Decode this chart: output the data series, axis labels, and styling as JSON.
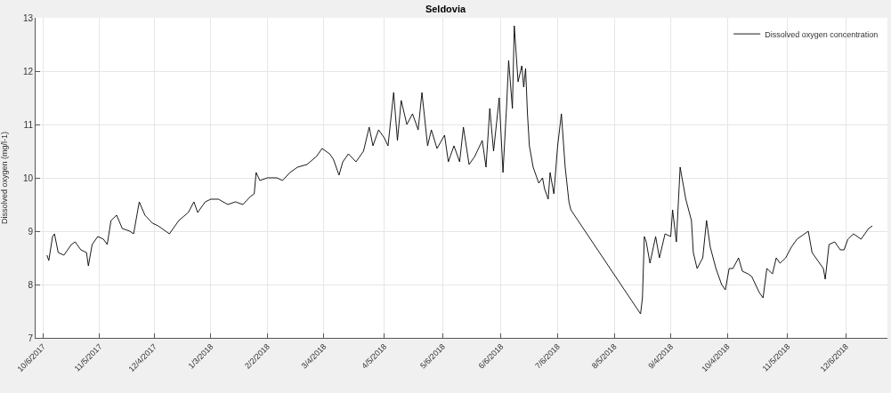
{
  "chart_data": {
    "type": "line",
    "title": "Seldovia",
    "ylabel": "Dissolved oxygen (mg/l-1)",
    "xlim": [
      "2017-10-02",
      "2018-12-28"
    ],
    "ylim": [
      7,
      13
    ],
    "yticks": [
      7,
      8,
      9,
      10,
      11,
      12,
      13
    ],
    "xticks": [
      {
        "value": "2017-10-06",
        "label": "10/6/2017"
      },
      {
        "value": "2017-11-05",
        "label": "11/5/2017"
      },
      {
        "value": "2017-12-04",
        "label": "12/4/2017"
      },
      {
        "value": "2018-01-03",
        "label": "1/3/2018"
      },
      {
        "value": "2018-02-02",
        "label": "2/2/2018"
      },
      {
        "value": "2018-03-04",
        "label": "3/4/2018"
      },
      {
        "value": "2018-04-05",
        "label": "4/5/2018"
      },
      {
        "value": "2018-05-06",
        "label": "5/6/2018"
      },
      {
        "value": "2018-06-06",
        "label": "6/6/2018"
      },
      {
        "value": "2018-07-06",
        "label": "7/6/2018"
      },
      {
        "value": "2018-08-05",
        "label": "8/5/2018"
      },
      {
        "value": "2018-09-04",
        "label": "9/4/2018"
      },
      {
        "value": "2018-10-04",
        "label": "10/4/2018"
      },
      {
        "value": "2018-11-05",
        "label": "11/5/2018"
      },
      {
        "value": "2018-12-06",
        "label": "12/6/2018"
      }
    ],
    "grid": true,
    "legend": "top right",
    "marker": "none",
    "line_style": "solid",
    "series": [
      {
        "name": "Dissolved oxygen concentration",
        "color": "#000000",
        "x": [
          "2017-10-08",
          "2017-10-09",
          "2017-10-11",
          "2017-10-12",
          "2017-10-14",
          "2017-10-17",
          "2017-10-21",
          "2017-10-23",
          "2017-10-26",
          "2017-10-29",
          "2017-10-30",
          "2017-11-01",
          "2017-11-04",
          "2017-11-07",
          "2017-11-09",
          "2017-11-11",
          "2017-11-14",
          "2017-11-17",
          "2017-11-21",
          "2017-11-23",
          "2017-11-26",
          "2017-11-29",
          "2017-12-03",
          "2017-12-06",
          "2017-12-08",
          "2017-12-10",
          "2017-12-12",
          "2017-12-17",
          "2017-12-22",
          "2017-12-25",
          "2017-12-27",
          "2017-12-31",
          "2018-01-03",
          "2018-01-07",
          "2018-01-12",
          "2018-01-16",
          "2018-01-20",
          "2018-01-24",
          "2018-01-26",
          "2018-01-27",
          "2018-01-29",
          "2018-02-02",
          "2018-02-07",
          "2018-02-10",
          "2018-02-14",
          "2018-02-18",
          "2018-02-23",
          "2018-02-28",
          "2018-03-03",
          "2018-03-07",
          "2018-03-09",
          "2018-03-12",
          "2018-03-14",
          "2018-03-17",
          "2018-03-21",
          "2018-03-25",
          "2018-03-28",
          "2018-03-30",
          "2018-04-02",
          "2018-04-05",
          "2018-04-07",
          "2018-04-10",
          "2018-04-12",
          "2018-04-14",
          "2018-04-17",
          "2018-04-20",
          "2018-04-23",
          "2018-04-25",
          "2018-04-28",
          "2018-04-30",
          "2018-05-03",
          "2018-05-07",
          "2018-05-09",
          "2018-05-12",
          "2018-05-15",
          "2018-05-17",
          "2018-05-20",
          "2018-05-23",
          "2018-05-27",
          "2018-05-29",
          "2018-05-31",
          "2018-06-02",
          "2018-06-05",
          "2018-06-07",
          "2018-06-09",
          "2018-06-10",
          "2018-06-12",
          "2018-06-13",
          "2018-06-15",
          "2018-06-17",
          "2018-06-18",
          "2018-06-19",
          "2018-06-20",
          "2018-06-21",
          "2018-06-23",
          "2018-06-26",
          "2018-06-28",
          "2018-06-29",
          "2018-07-01",
          "2018-07-02",
          "2018-07-04",
          "2018-07-06",
          "2018-07-08",
          "2018-07-10",
          "2018-07-12",
          "2018-07-13",
          "2018-08-19",
          "2018-08-20",
          "2018-08-21",
          "2018-08-22",
          "2018-08-24",
          "2018-08-27",
          "2018-08-29",
          "2018-09-01",
          "2018-09-04",
          "2018-09-05",
          "2018-09-07",
          "2018-09-09",
          "2018-09-11",
          "2018-09-12",
          "2018-09-15",
          "2018-09-16",
          "2018-09-18",
          "2018-09-21",
          "2018-09-23",
          "2018-09-25",
          "2018-09-28",
          "2018-10-01",
          "2018-10-03",
          "2018-10-05",
          "2018-10-07",
          "2018-10-10",
          "2018-10-12",
          "2018-10-15",
          "2018-10-17",
          "2018-10-21",
          "2018-10-23",
          "2018-10-25",
          "2018-10-28",
          "2018-10-30",
          "2018-11-01",
          "2018-11-04",
          "2018-11-07",
          "2018-11-10",
          "2018-11-16",
          "2018-11-18",
          "2018-11-21",
          "2018-11-24",
          "2018-11-25",
          "2018-11-27",
          "2018-11-30",
          "2018-12-03",
          "2018-12-05",
          "2018-12-07",
          "2018-12-10",
          "2018-12-14",
          "2018-12-16",
          "2018-12-18",
          "2018-12-20"
        ],
        "values": [
          8.55,
          8.45,
          8.9,
          8.95,
          8.6,
          8.55,
          8.75,
          8.8,
          8.65,
          8.6,
          8.35,
          8.75,
          8.9,
          8.85,
          8.75,
          9.2,
          9.3,
          9.05,
          9.0,
          8.95,
          9.55,
          9.3,
          9.15,
          9.1,
          9.05,
          9.0,
          8.95,
          9.2,
          9.35,
          9.55,
          9.35,
          9.55,
          9.6,
          9.6,
          9.5,
          9.55,
          9.5,
          9.65,
          9.7,
          10.1,
          9.95,
          10.0,
          10.0,
          9.95,
          10.1,
          10.2,
          10.25,
          10.4,
          10.55,
          10.45,
          10.35,
          10.05,
          10.3,
          10.45,
          10.3,
          10.5,
          10.95,
          10.6,
          10.9,
          10.75,
          10.6,
          11.6,
          10.7,
          11.45,
          11.0,
          11.2,
          10.9,
          11.6,
          10.6,
          10.9,
          10.55,
          10.8,
          10.3,
          10.6,
          10.3,
          10.95,
          10.25,
          10.4,
          10.7,
          10.2,
          11.3,
          10.5,
          11.5,
          10.1,
          11.4,
          12.2,
          11.3,
          12.85,
          11.8,
          12.1,
          11.7,
          12.05,
          11.2,
          10.6,
          10.2,
          9.9,
          10.0,
          9.8,
          9.6,
          10.1,
          9.7,
          10.6,
          11.2,
          10.2,
          9.55,
          9.4,
          7.45,
          7.75,
          8.9,
          8.8,
          8.4,
          8.9,
          8.5,
          8.95,
          8.9,
          9.4,
          8.8,
          10.2,
          9.8,
          9.6,
          9.2,
          8.6,
          8.3,
          8.5,
          9.2,
          8.7,
          8.3,
          8.0,
          7.9,
          8.3,
          8.3,
          8.5,
          8.25,
          8.2,
          8.15,
          7.85,
          7.75,
          8.3,
          8.2,
          8.5,
          8.4,
          8.5,
          8.7,
          8.85,
          9.0,
          8.6,
          8.45,
          8.3,
          8.1,
          8.75,
          8.8,
          8.65,
          8.65,
          8.85,
          8.95,
          8.85,
          8.95,
          9.05,
          9.1
        ]
      }
    ]
  }
}
